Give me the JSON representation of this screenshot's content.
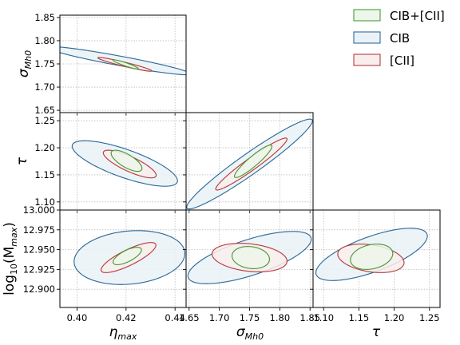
{
  "chart_data": {
    "type": "corner",
    "legend": [
      {
        "label": "CIB+[CII]",
        "edge": "#4a9a3a",
        "fill": "#edf6ea"
      },
      {
        "label": "CIB",
        "edge": "#2f6b9a",
        "fill": "#eaf2f7"
      },
      {
        "label": "[CII]",
        "edge": "#b83c3c",
        "fill": "#f9eded"
      }
    ],
    "legend_position": "top-right",
    "grid": true,
    "parameters": [
      {
        "key": "eta",
        "label_main": "η",
        "label_sub": "max",
        "ticks": [
          "0.40",
          "0.42",
          "0.44"
        ],
        "tick_values": [
          0.4,
          0.42,
          0.44
        ],
        "range": [
          0.393,
          0.4445
        ]
      },
      {
        "key": "sigma",
        "label_main": "σ",
        "label_sub": "Mh0",
        "ticks": [
          "1.65",
          "1.70",
          "1.75",
          "1.80",
          "1.85"
        ],
        "tick_values": [
          1.65,
          1.7,
          1.75,
          1.8,
          1.85
        ],
        "range": [
          1.645,
          1.855
        ]
      },
      {
        "key": "tau",
        "label_main": "τ",
        "label_sub": "",
        "ticks": [
          "1.10",
          "1.15",
          "1.20",
          "1.25"
        ],
        "tick_values": [
          1.1,
          1.15,
          1.2,
          1.25
        ],
        "range": [
          1.085,
          1.265
        ]
      },
      {
        "key": "logM",
        "label_main": "log",
        "label_sub": "10",
        "label_tail": "(M",
        "label_tail_sub": "max",
        "label_end": ")",
        "ticks": [
          "12.900",
          "12.925",
          "12.950",
          "12.975",
          "13.000"
        ],
        "tick_values": [
          12.9,
          12.925,
          12.95,
          12.975,
          13.0
        ],
        "range": [
          12.877,
          13.0
        ]
      }
    ],
    "panels": [
      {
        "x": "eta",
        "y": "sigma",
        "ellipses": [
          {
            "series": "CIB",
            "cx": 0.417,
            "cy": 1.757,
            "rx": 0.0295,
            "ry": 0.0305,
            "rho": -0.94
          },
          {
            "series": "[CII]",
            "cx": 0.4195,
            "cy": 1.749,
            "rx": 0.011,
            "ry": 0.0148,
            "rho": -0.95
          },
          {
            "series": "CIB+[CII]",
            "cx": 0.4198,
            "cy": 1.749,
            "rx": 0.0052,
            "ry": 0.01,
            "rho": -0.93
          }
        ]
      },
      {
        "x": "eta",
        "y": "tau",
        "ellipses": [
          {
            "series": "CIB",
            "cx": 0.4195,
            "cy": 1.171,
            "rx": 0.0215,
            "ry": 0.042,
            "rho": -0.76
          },
          {
            "series": "[CII]",
            "cx": 0.4215,
            "cy": 1.17,
            "rx": 0.0108,
            "ry": 0.0255,
            "rho": -0.81
          },
          {
            "series": "CIB+[CII]",
            "cx": 0.4202,
            "cy": 1.176,
            "rx": 0.0063,
            "ry": 0.0195,
            "rho": -0.72
          }
        ]
      },
      {
        "x": "sigma",
        "y": "tau",
        "ellipses": [
          {
            "series": "CIB",
            "cx": 1.75,
            "cy": 1.17,
            "rx": 0.104,
            "ry": 0.083,
            "rho": 0.96
          },
          {
            "series": "[CII]",
            "cx": 1.753,
            "cy": 1.17,
            "rx": 0.059,
            "ry": 0.048,
            "rho": 0.96
          },
          {
            "series": "CIB+[CII]",
            "cx": 1.756,
            "cy": 1.175,
            "rx": 0.031,
            "ry": 0.03,
            "rho": 0.92
          }
        ]
      },
      {
        "x": "eta",
        "y": "logM",
        "ellipses": [
          {
            "series": "CIB",
            "cx": 0.4214,
            "cy": 12.94,
            "rx": 0.0226,
            "ry": 0.034,
            "rho": 0.15
          },
          {
            "series": "[CII]",
            "cx": 0.421,
            "cy": 12.94,
            "rx": 0.0112,
            "ry": 0.019,
            "rho": 0.82
          },
          {
            "series": "CIB+[CII]",
            "cx": 0.4205,
            "cy": 12.942,
            "rx": 0.0058,
            "ry": 0.011,
            "rho": 0.7
          }
        ]
      },
      {
        "x": "sigma",
        "y": "logM",
        "ellipses": [
          {
            "series": "CIB",
            "cx": 1.75,
            "cy": 12.94,
            "rx": 0.102,
            "ry": 0.033,
            "rho": 0.7
          },
          {
            "series": "[CII]",
            "cx": 1.75,
            "cy": 12.94,
            "rx": 0.062,
            "ry": 0.018,
            "rho": -0.25
          },
          {
            "series": "CIB+[CII]",
            "cx": 1.752,
            "cy": 12.94,
            "rx": 0.031,
            "ry": 0.014,
            "rho": -0.15
          }
        ]
      },
      {
        "x": "tau",
        "y": "logM",
        "ellipses": [
          {
            "series": "CIB",
            "cx": 1.168,
            "cy": 12.944,
            "rx": 0.079,
            "ry": 0.033,
            "rho": 0.7
          },
          {
            "series": "[CII]",
            "cx": 1.167,
            "cy": 12.939,
            "rx": 0.047,
            "ry": 0.018,
            "rho": -0.3
          },
          {
            "series": "CIB+[CII]",
            "cx": 1.168,
            "cy": 12.941,
            "rx": 0.03,
            "ry": 0.016,
            "rho": 0.25
          }
        ]
      }
    ]
  }
}
